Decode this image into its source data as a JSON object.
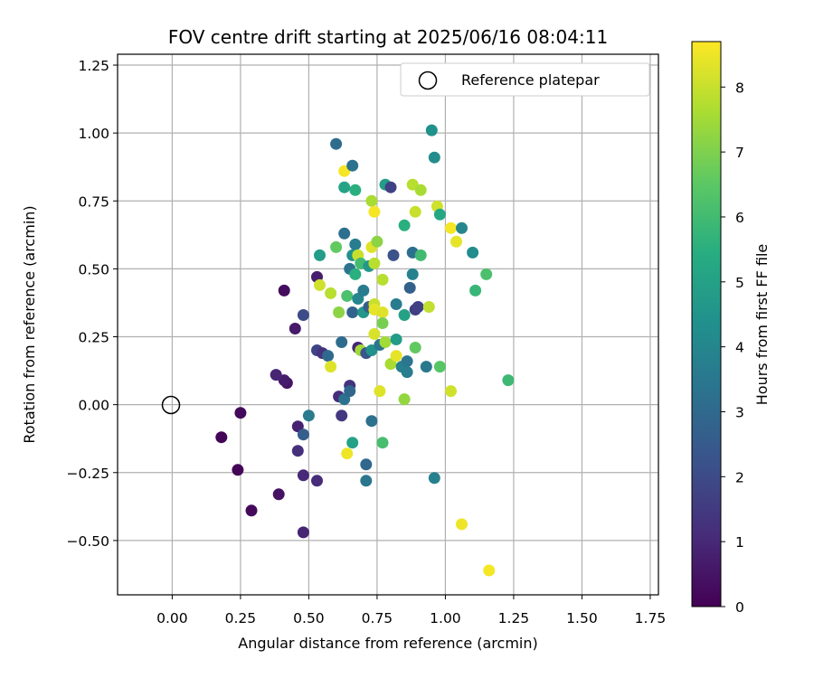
{
  "chart_data": {
    "type": "scatter",
    "title": "FOV centre drift starting at 2025/06/16 08:04:11",
    "xlabel": "Angular distance from reference (arcmin)",
    "ylabel": "Rotation from reference (arcmin)",
    "xlim": [
      -0.2,
      1.78
    ],
    "ylim": [
      -0.7,
      1.29
    ],
    "xticks": [
      "0.00",
      "0.25",
      "0.50",
      "0.75",
      "1.00",
      "1.25",
      "1.50",
      "1.75"
    ],
    "yticks": [
      "−0.50",
      "−0.25",
      "0.00",
      "0.25",
      "0.50",
      "0.75",
      "1.00",
      "1.25"
    ],
    "grid": true,
    "legend": {
      "position": "top-right",
      "label": "Reference platepar",
      "marker": "open-circle"
    },
    "colorbar": {
      "label": "Hours from first FF file",
      "range": [
        0,
        8.7
      ],
      "ticks": [
        "0",
        "1",
        "2",
        "3",
        "4",
        "5",
        "6",
        "7",
        "8"
      ],
      "colormap": "viridis"
    },
    "reference_point": {
      "x": 0.0,
      "y": 0.0
    },
    "points": [
      {
        "x": 0.18,
        "y": -0.12,
        "c": 0.1
      },
      {
        "x": 0.24,
        "y": -0.24,
        "c": 0.1
      },
      {
        "x": 0.25,
        "y": -0.03,
        "c": 0.2
      },
      {
        "x": 0.29,
        "y": -0.39,
        "c": 0.2
      },
      {
        "x": 0.39,
        "y": -0.33,
        "c": 0.4
      },
      {
        "x": 0.41,
        "y": 0.42,
        "c": 0.3
      },
      {
        "x": 0.42,
        "y": 0.08,
        "c": 0.5
      },
      {
        "x": 0.41,
        "y": 0.09,
        "c": 0.7
      },
      {
        "x": 0.38,
        "y": 0.11,
        "c": 0.9
      },
      {
        "x": 0.45,
        "y": 0.28,
        "c": 0.6
      },
      {
        "x": 0.46,
        "y": -0.08,
        "c": 0.8
      },
      {
        "x": 0.46,
        "y": -0.17,
        "c": 1.2
      },
      {
        "x": 0.48,
        "y": -0.26,
        "c": 1.0
      },
      {
        "x": 0.48,
        "y": -0.47,
        "c": 0.9
      },
      {
        "x": 0.48,
        "y": 0.33,
        "c": 2.0
      },
      {
        "x": 0.48,
        "y": -0.11,
        "c": 2.6
      },
      {
        "x": 0.5,
        "y": -0.04,
        "c": 3.6
      },
      {
        "x": 0.53,
        "y": -0.28,
        "c": 1.1
      },
      {
        "x": 0.53,
        "y": 0.47,
        "c": 0.7
      },
      {
        "x": 0.53,
        "y": 0.2,
        "c": 1.8
      },
      {
        "x": 0.55,
        "y": 0.19,
        "c": 1.3
      },
      {
        "x": 0.57,
        "y": 0.18,
        "c": 3.0
      },
      {
        "x": 0.54,
        "y": 0.55,
        "c": 4.8
      },
      {
        "x": 0.54,
        "y": 0.44,
        "c": 8.1
      },
      {
        "x": 0.58,
        "y": 0.41,
        "c": 7.8
      },
      {
        "x": 0.58,
        "y": 0.14,
        "c": 8.3
      },
      {
        "x": 0.6,
        "y": 0.96,
        "c": 3.1
      },
      {
        "x": 0.6,
        "y": 0.58,
        "c": 6.6
      },
      {
        "x": 0.61,
        "y": 0.34,
        "c": 7.2
      },
      {
        "x": 0.62,
        "y": 0.23,
        "c": 3.1
      },
      {
        "x": 0.61,
        "y": 0.03,
        "c": 1.1
      },
      {
        "x": 0.62,
        "y": -0.04,
        "c": 1.4
      },
      {
        "x": 0.63,
        "y": 0.02,
        "c": 3.3
      },
      {
        "x": 0.63,
        "y": 0.86,
        "c": 8.6
      },
      {
        "x": 0.63,
        "y": 0.8,
        "c": 5.1
      },
      {
        "x": 0.63,
        "y": 0.63,
        "c": 3.2
      },
      {
        "x": 0.64,
        "y": 0.4,
        "c": 6.2
      },
      {
        "x": 0.64,
        "y": -0.18,
        "c": 8.5
      },
      {
        "x": 0.65,
        "y": 0.07,
        "c": 1.3
      },
      {
        "x": 0.65,
        "y": 0.05,
        "c": 2.9
      },
      {
        "x": 0.66,
        "y": 0.88,
        "c": 3.3
      },
      {
        "x": 0.65,
        "y": 0.5,
        "c": 3.4
      },
      {
        "x": 0.66,
        "y": 0.34,
        "c": 2.8
      },
      {
        "x": 0.66,
        "y": 0.55,
        "c": 4.4
      },
      {
        "x": 0.66,
        "y": -0.14,
        "c": 5.0
      },
      {
        "x": 0.67,
        "y": 0.79,
        "c": 5.5
      },
      {
        "x": 0.67,
        "y": 0.59,
        "c": 3.7
      },
      {
        "x": 0.67,
        "y": 0.48,
        "c": 5.5
      },
      {
        "x": 0.68,
        "y": 0.39,
        "c": 4.0
      },
      {
        "x": 0.68,
        "y": 0.21,
        "c": 0.9
      },
      {
        "x": 0.68,
        "y": 0.55,
        "c": 8.0
      },
      {
        "x": 0.69,
        "y": 0.2,
        "c": 7.5
      },
      {
        "x": 0.69,
        "y": 0.52,
        "c": 6.0
      },
      {
        "x": 0.7,
        "y": 0.42,
        "c": 3.6
      },
      {
        "x": 0.7,
        "y": 0.34,
        "c": 4.6
      },
      {
        "x": 0.71,
        "y": 0.19,
        "c": 2.3
      },
      {
        "x": 0.71,
        "y": -0.22,
        "c": 2.9
      },
      {
        "x": 0.71,
        "y": -0.28,
        "c": 3.4
      },
      {
        "x": 0.72,
        "y": 0.36,
        "c": 2.6
      },
      {
        "x": 0.72,
        "y": 0.51,
        "c": 4.6
      },
      {
        "x": 0.73,
        "y": 0.2,
        "c": 4.4
      },
      {
        "x": 0.73,
        "y": 0.75,
        "c": 7.6
      },
      {
        "x": 0.73,
        "y": 0.58,
        "c": 8.3
      },
      {
        "x": 0.73,
        "y": -0.06,
        "c": 3.3
      },
      {
        "x": 0.74,
        "y": 0.71,
        "c": 8.6
      },
      {
        "x": 0.74,
        "y": 0.52,
        "c": 7.8
      },
      {
        "x": 0.74,
        "y": 0.37,
        "c": 8.0
      },
      {
        "x": 0.74,
        "y": 0.35,
        "c": 8.4
      },
      {
        "x": 0.74,
        "y": 0.26,
        "c": 8.2
      },
      {
        "x": 0.75,
        "y": 0.6,
        "c": 7.2
      },
      {
        "x": 0.76,
        "y": 0.22,
        "c": 3.4
      },
      {
        "x": 0.76,
        "y": 0.05,
        "c": 8.3
      },
      {
        "x": 0.77,
        "y": 0.34,
        "c": 8.3
      },
      {
        "x": 0.77,
        "y": 0.3,
        "c": 6.9
      },
      {
        "x": 0.77,
        "y": -0.14,
        "c": 6.1
      },
      {
        "x": 0.77,
        "y": 0.46,
        "c": 7.8
      },
      {
        "x": 0.78,
        "y": 0.81,
        "c": 4.8
      },
      {
        "x": 0.78,
        "y": 0.23,
        "c": 7.5
      },
      {
        "x": 0.8,
        "y": 0.8,
        "c": 1.7
      },
      {
        "x": 0.8,
        "y": 0.15,
        "c": 7.6
      },
      {
        "x": 0.81,
        "y": 0.55,
        "c": 2.2
      },
      {
        "x": 0.82,
        "y": 0.37,
        "c": 3.6
      },
      {
        "x": 0.82,
        "y": 0.24,
        "c": 4.8
      },
      {
        "x": 0.82,
        "y": 0.18,
        "c": 8.4
      },
      {
        "x": 0.84,
        "y": 0.14,
        "c": 3.8
      },
      {
        "x": 0.85,
        "y": 0.66,
        "c": 5.5
      },
      {
        "x": 0.85,
        "y": 0.33,
        "c": 5.0
      },
      {
        "x": 0.85,
        "y": 0.02,
        "c": 7.3
      },
      {
        "x": 0.86,
        "y": 0.16,
        "c": 3.4
      },
      {
        "x": 0.86,
        "y": 0.12,
        "c": 3.7
      },
      {
        "x": 0.87,
        "y": 0.43,
        "c": 2.7
      },
      {
        "x": 0.88,
        "y": 0.81,
        "c": 7.8
      },
      {
        "x": 0.88,
        "y": 0.56,
        "c": 3.2
      },
      {
        "x": 0.88,
        "y": 0.48,
        "c": 3.8
      },
      {
        "x": 0.89,
        "y": 0.71,
        "c": 8.0
      },
      {
        "x": 0.89,
        "y": 0.35,
        "c": 1.6
      },
      {
        "x": 0.89,
        "y": 0.21,
        "c": 6.6
      },
      {
        "x": 0.9,
        "y": 0.36,
        "c": 1.7
      },
      {
        "x": 0.91,
        "y": 0.79,
        "c": 7.6
      },
      {
        "x": 0.91,
        "y": 0.55,
        "c": 6.0
      },
      {
        "x": 0.93,
        "y": 0.14,
        "c": 3.5
      },
      {
        "x": 0.94,
        "y": 0.36,
        "c": 7.9
      },
      {
        "x": 0.95,
        "y": 1.01,
        "c": 4.4
      },
      {
        "x": 0.96,
        "y": 0.91,
        "c": 4.2
      },
      {
        "x": 0.96,
        "y": -0.27,
        "c": 3.8
      },
      {
        "x": 0.97,
        "y": 0.73,
        "c": 8.1
      },
      {
        "x": 0.98,
        "y": 0.7,
        "c": 5.2
      },
      {
        "x": 0.98,
        "y": 0.14,
        "c": 6.4
      },
      {
        "x": 1.02,
        "y": 0.65,
        "c": 8.6
      },
      {
        "x": 1.02,
        "y": 0.05,
        "c": 8.1
      },
      {
        "x": 1.04,
        "y": 0.6,
        "c": 8.4
      },
      {
        "x": 1.06,
        "y": 0.65,
        "c": 4.0
      },
      {
        "x": 1.06,
        "y": -0.44,
        "c": 8.5
      },
      {
        "x": 1.1,
        "y": 0.56,
        "c": 4.2
      },
      {
        "x": 1.11,
        "y": 0.42,
        "c": 5.8
      },
      {
        "x": 1.15,
        "y": 0.48,
        "c": 6.2
      },
      {
        "x": 1.16,
        "y": -0.61,
        "c": 8.6
      },
      {
        "x": 1.23,
        "y": 0.09,
        "c": 5.9
      }
    ]
  }
}
